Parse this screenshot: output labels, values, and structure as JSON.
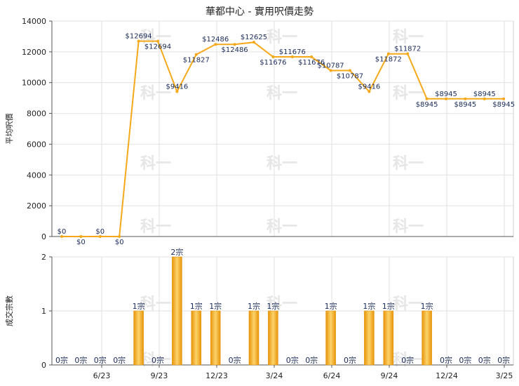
{
  "title": "華都中心 - 實用呎價走勢",
  "chart_data": [
    {
      "type": "line",
      "ylabel": "平均呎價",
      "ylim": [
        0,
        14000
      ],
      "yticks": [
        0,
        2000,
        4000,
        6000,
        8000,
        10000,
        12000,
        14000
      ],
      "grid": true,
      "series": [
        {
          "values": [
            0,
            0,
            0,
            0,
            12694,
            12694,
            9416,
            11827,
            12486,
            12486,
            12625,
            11676,
            11676,
            11676,
            10787,
            10787,
            9416,
            11872,
            11872,
            8945,
            8945,
            8945,
            8945,
            8945
          ],
          "labels": [
            "$0",
            "$0",
            "$0",
            "$0",
            "$12694",
            "$12694",
            "$9416",
            "$11827",
            "$12486",
            "$12486",
            "$12625",
            "$11676",
            "$11676",
            "$11676",
            "$10787",
            "$10787",
            "$9416",
            "$11872",
            "$11872",
            "$8945",
            "$8945",
            "$8945",
            "$8945",
            "$8945"
          ],
          "color": "#f5a91a"
        }
      ]
    },
    {
      "type": "bar",
      "ylabel": "成交宗數",
      "ylim": [
        0,
        2
      ],
      "yticks": [
        0,
        1,
        2
      ],
      "xticklabels": [
        "6/23",
        "9/23",
        "12/23",
        "3/24",
        "6/24",
        "9/24",
        "12/24",
        "3/25"
      ],
      "values": [
        0,
        0,
        0,
        0,
        1,
        0,
        2,
        1,
        1,
        0,
        1,
        1,
        0,
        0,
        1,
        0,
        1,
        1,
        0,
        1,
        0,
        0,
        0,
        0
      ],
      "labels": [
        "0宗",
        "0宗",
        "0宗",
        "0宗",
        "1宗",
        "0宗",
        "2宗",
        "1宗",
        "1宗",
        "0宗",
        "1宗",
        "1宗",
        "0宗",
        "0宗",
        "1宗",
        "0宗",
        "1宗",
        "1宗",
        "0宗",
        "1宗",
        "0宗",
        "0宗",
        "0宗",
        "0宗"
      ],
      "color": "#f5a91a"
    }
  ],
  "watermark": "科一"
}
